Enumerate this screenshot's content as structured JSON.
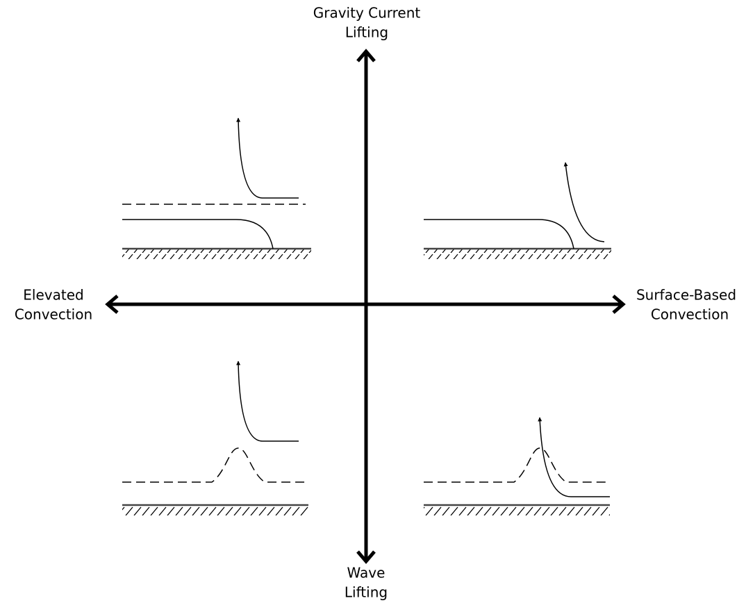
{
  "labels": {
    "top": [
      "Gravity Current",
      "Lifting"
    ],
    "left": [
      "Elevated",
      "Convection"
    ],
    "right": [
      "Surface-Based",
      "Convection"
    ],
    "bottom": [
      "Wave",
      "Lifting"
    ]
  }
}
